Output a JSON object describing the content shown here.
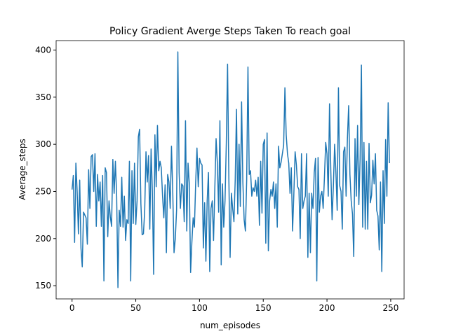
{
  "chart_data": {
    "type": "line",
    "title": "Policy Gradient Averge Steps Taken To reach goal",
    "x_label": "num_episodes",
    "y_label": "Average_steps",
    "xlim": [
      -12.5,
      260.5
    ],
    "ylim": [
      136,
      410
    ],
    "xticks": [
      0,
      50,
      100,
      150,
      200,
      250
    ],
    "yticks": [
      150,
      200,
      250,
      300,
      350,
      400
    ],
    "x": [
      0,
      1,
      2,
      3,
      4,
      5,
      6,
      7,
      8,
      9,
      10,
      11,
      12,
      13,
      14,
      15,
      16,
      17,
      18,
      19,
      20,
      21,
      22,
      23,
      24,
      25,
      26,
      27,
      28,
      29,
      30,
      31,
      32,
      33,
      34,
      35,
      36,
      37,
      38,
      39,
      40,
      41,
      42,
      43,
      44,
      45,
      46,
      47,
      48,
      49,
      50,
      51,
      52,
      53,
      54,
      55,
      56,
      57,
      58,
      59,
      60,
      61,
      62,
      63,
      64,
      65,
      66,
      67,
      68,
      69,
      70,
      71,
      72,
      73,
      74,
      75,
      76,
      77,
      78,
      79,
      80,
      81,
      82,
      83,
      84,
      85,
      86,
      87,
      88,
      89,
      90,
      91,
      92,
      93,
      94,
      95,
      96,
      97,
      98,
      99,
      100,
      101,
      102,
      103,
      104,
      105,
      106,
      107,
      108,
      109,
      110,
      111,
      112,
      113,
      114,
      115,
      116,
      117,
      118,
      119,
      120,
      121,
      122,
      123,
      124,
      125,
      126,
      127,
      128,
      129,
      130,
      131,
      132,
      133,
      134,
      135,
      136,
      137,
      138,
      139,
      140,
      141,
      142,
      143,
      144,
      145,
      146,
      147,
      148,
      149,
      150,
      151,
      152,
      153,
      154,
      155,
      156,
      157,
      158,
      159,
      160,
      161,
      162,
      163,
      164,
      165,
      166,
      167,
      168,
      169,
      170,
      171,
      172,
      173,
      174,
      175,
      176,
      177,
      178,
      179,
      180,
      181,
      182,
      183,
      184,
      185,
      186,
      187,
      188,
      189,
      190,
      191,
      192,
      193,
      194,
      195,
      196,
      197,
      198,
      199,
      200,
      201,
      202,
      203,
      204,
      205,
      206,
      207,
      208,
      209,
      210,
      211,
      212,
      213,
      214,
      215,
      216,
      217,
      218,
      219,
      220,
      221,
      222,
      223,
      224,
      225,
      226,
      227,
      228,
      229,
      230,
      231,
      232,
      233,
      234,
      235,
      236,
      237,
      238,
      239,
      240,
      241,
      242,
      243,
      244,
      245,
      246,
      247,
      248,
      249
    ],
    "series": [
      {
        "color": "#1f77b4",
        "values": [
          252,
          267,
          196,
          280,
          250,
          205,
          262,
          190,
          170,
          228,
          225,
          222,
          194,
          273,
          232,
          287,
          289,
          250,
          290,
          213,
          268,
          240,
          260,
          213,
          267,
          155,
          275,
          270,
          202,
          240,
          223,
          213,
          284,
          248,
          282,
          245,
          148,
          230,
          213,
          265,
          212,
          245,
          198,
          220,
          216,
          282,
          155,
          272,
          216,
          280,
          215,
          240,
          308,
          316,
          237,
          204,
          205,
          230,
          292,
          260,
          288,
          210,
          295,
          250,
          162,
          310,
          255,
          320,
          272,
          282,
          275,
          245,
          222,
          257,
          185,
          268,
          260,
          232,
          298,
          250,
          185,
          200,
          230,
          398,
          270,
          232,
          258,
          256,
          218,
          325,
          208,
          280,
          258,
          164,
          196,
          222,
          212,
          260,
          296,
          255,
          285,
          280,
          278,
          190,
          238,
          176,
          240,
          270,
          165,
          232,
          240,
          198,
          253,
          306,
          280,
          228,
          325,
          172,
          258,
          212,
          240,
          300,
          385,
          265,
          180,
          248,
          232,
          218,
          262,
          337,
          226,
          300,
          234,
          345,
          260,
          220,
          208,
          262,
          382,
          268,
          272,
          245,
          254,
          250,
          262,
          245,
          265,
          214,
          282,
          227,
          300,
          305,
          195,
          312,
          187,
          240,
          252,
          245,
          260,
          232,
          258,
          212,
          298,
          275,
          281,
          290,
          299,
          360,
          310,
          290,
          280,
          248,
          275,
          208,
          247,
          292,
          278,
          255,
          252,
          200,
          290,
          232,
          240,
          245,
          290,
          180,
          248,
          185,
          248,
          232,
          270,
          285,
          155,
          286,
          228,
          245,
          250,
          232,
          265,
          302,
          290,
          245,
          343,
          272,
          220,
          255,
          300,
          270,
          230,
          360,
          256,
          250,
          210,
          292,
          297,
          245,
          305,
          341,
          268,
          240,
          226,
          181,
          306,
          245,
          320,
          236,
          285,
          384,
          212,
          302,
          210,
          282,
          210,
          301,
          238,
          246,
          283,
          258,
          290,
          230,
          224,
          188,
          260,
          165,
          272,
          216,
          305,
          245,
          344,
          280
        ]
      }
    ]
  }
}
